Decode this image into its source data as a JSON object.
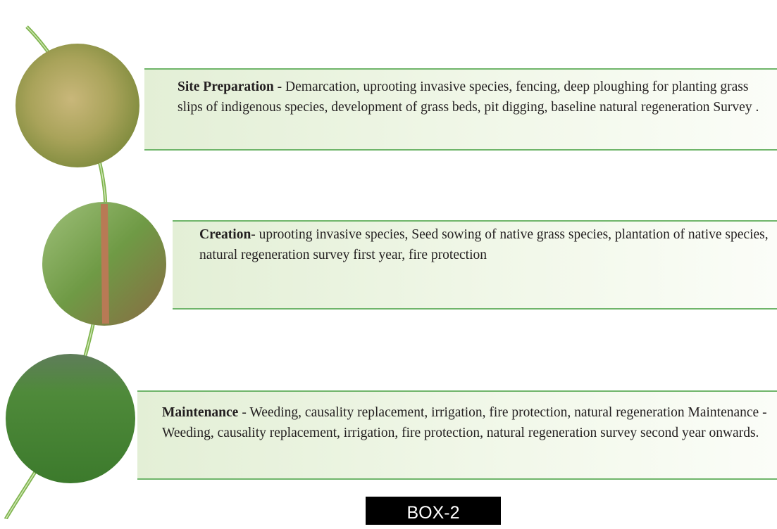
{
  "items": [
    {
      "title": "Site Preparation",
      "text": "- Demarcation, uprooting invasive species, fencing, deep ploughing for planting grass slips of indigenous species, development of grass beds, pit digging, baseline natural regeneration Survey ."
    },
    {
      "title": "Creation",
      "text": "- uprooting invasive species, Seed sowing of native grass species, plantation of native species, natural regeneration survey first year, fire protection"
    },
    {
      "title": "Maintenance",
      "text": "- Weeding, causality replacement, irrigation, fire protection, natural regeneration Maintenance - Weeding, causality replacement, irrigation, fire protection, natural regeneration survey second year onwards."
    }
  ],
  "footer": {
    "label": "BOX-2"
  }
}
